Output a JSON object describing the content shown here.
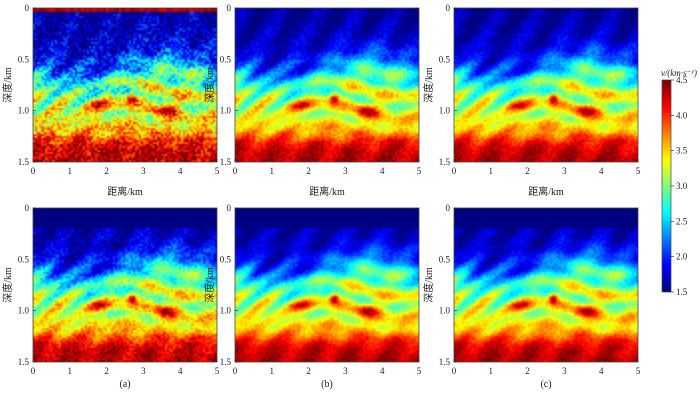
{
  "chart_data": {
    "type": "heatmap",
    "description_units": {
      "x": "km",
      "y": "km",
      "value": "km/s"
    },
    "panels": [
      {
        "id": "a",
        "xlabel": "距离/km",
        "ylabel": "深度/km",
        "caption": "",
        "xlim": [
          0,
          5
        ],
        "ylim": [
          0,
          1.5
        ],
        "water_layer_depth": 0.0,
        "noise": 0.9,
        "row": 0,
        "col": 0
      },
      {
        "id": "b",
        "xlabel": "距离/km",
        "ylabel": "深度/km",
        "caption": "",
        "xlim": [
          0,
          5
        ],
        "ylim": [
          0,
          1.5
        ],
        "water_layer_depth": 0.0,
        "noise": 0.35,
        "row": 0,
        "col": 1
      },
      {
        "id": "c",
        "xlabel": "距离/km",
        "ylabel": "深度/km",
        "caption": "",
        "xlim": [
          0,
          5
        ],
        "ylim": [
          0,
          1.5
        ],
        "water_layer_depth": 0.0,
        "noise": 0.3,
        "row": 0,
        "col": 2
      },
      {
        "id": "d",
        "xlabel": "",
        "ylabel": "深度/km",
        "caption": "(a)",
        "xlim": [
          0,
          5
        ],
        "ylim": [
          0,
          1.5
        ],
        "water_layer_depth": 0.2,
        "noise": 0.5,
        "row": 1,
        "col": 0
      },
      {
        "id": "e",
        "xlabel": "",
        "ylabel": "深度/km",
        "caption": "(b)",
        "xlim": [
          0,
          5
        ],
        "ylim": [
          0,
          1.5
        ],
        "water_layer_depth": 0.2,
        "noise": 0.25,
        "row": 1,
        "col": 1
      },
      {
        "id": "f",
        "xlabel": "",
        "ylabel": "深度/km",
        "caption": "(c)",
        "xlim": [
          0,
          5
        ],
        "ylim": [
          0,
          1.5
        ],
        "water_layer_depth": 0.2,
        "noise": 0.25,
        "row": 1,
        "col": 2
      }
    ],
    "x_ticks": [
      0,
      1,
      2,
      3,
      4,
      5
    ],
    "y_ticks": [
      0,
      0.5,
      1.0,
      1.5
    ],
    "y_tick_labels": [
      "0",
      "0.5",
      "1.0",
      "1.5"
    ],
    "colorbar": {
      "title": "v/(km·s⁻¹)",
      "range": [
        1.5,
        4.5
      ],
      "ticks": [
        1.5,
        2.0,
        2.5,
        3.0,
        3.5,
        4.0,
        4.5
      ],
      "tick_labels": [
        "1.5",
        "2.0",
        "2.5",
        "3.0",
        "3.5",
        "4.0",
        "4.5"
      ],
      "colormap": "jet"
    },
    "grid": false
  }
}
